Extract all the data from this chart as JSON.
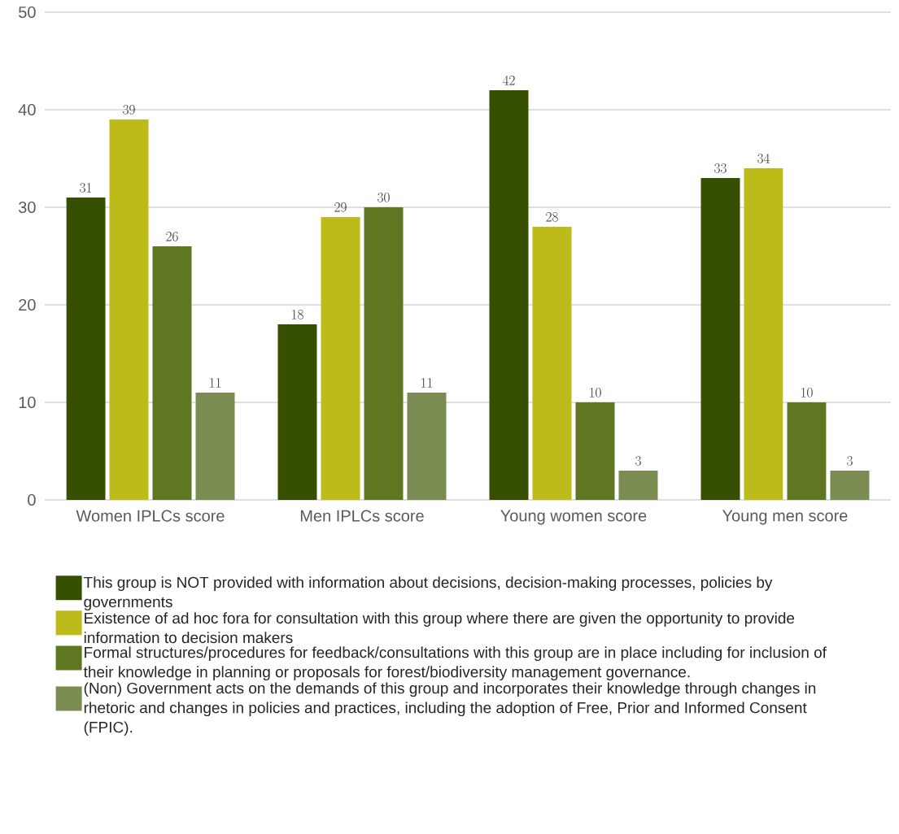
{
  "chart_data": {
    "type": "bar",
    "categories": [
      "Women IPLCs score",
      "Men IPLCs score",
      "Young women score",
      "Young men score"
    ],
    "series": [
      {
        "name": "This group is NOT provided with information about decisions, decision-making processes, policies by governments",
        "color": "#374f00",
        "values": [
          31,
          18,
          42,
          33
        ]
      },
      {
        "name": "Existence of ad hoc fora for consultation with this group where there are given the opportunity to provide information to decision makers",
        "color": "#bcbb1a",
        "values": [
          39,
          29,
          28,
          34
        ]
      },
      {
        "name": "Formal structures/procedures for feedback/consultations with this group are in place including for inclusion of their knowledge in planning or proposals for forest/biodiversity management governance.",
        "color": "#5e7720",
        "values": [
          26,
          30,
          10,
          10
        ]
      },
      {
        "name": "(Non) Government acts on the demands of this group and incorporates their knowledge through changes in rhetoric and changes in policies and practices, including the adoption of Free, Prior and Informed Consent (FPIC).",
        "color": "#7a8c52",
        "values": [
          11,
          11,
          3,
          3
        ]
      }
    ],
    "ylim": [
      0,
      50
    ],
    "yticks": [
      0,
      10,
      20,
      30,
      40,
      50
    ],
    "grid": "y",
    "legend": "bottom",
    "data_labels": true
  }
}
